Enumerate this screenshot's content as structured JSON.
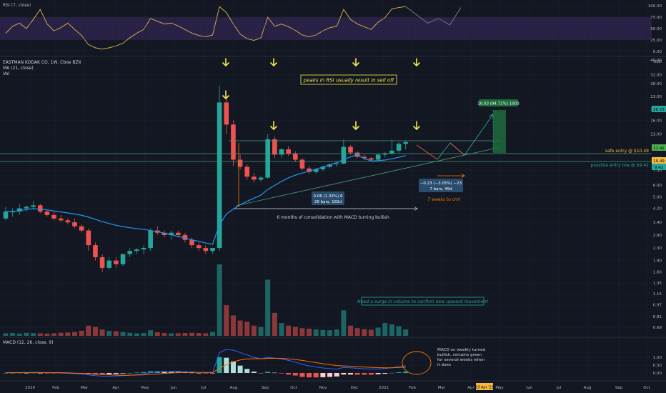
{
  "colors": {
    "bg": "#131722",
    "grid": "#1f2330",
    "axis_text": "#b2b5be",
    "up": "#26a69a",
    "down": "#ef5350",
    "ma": "#2196f3",
    "rsi_line": "#c9a94f",
    "rsi_band": "#2a2146",
    "arrow": "#f5e94a",
    "macd_line": "#2962ff",
    "signal_line": "#ff6d00",
    "annotation": "#f5e94a",
    "ruler": "#2a4d6e",
    "profit": "#1e6b3c",
    "loss": "#c2185b"
  },
  "header": {
    "rsi_label": "RSI (7, close)",
    "symbol_label": "EASTMAN KODAK CO, 1W, Cboe BZX",
    "ma_label": "MA (21, close)",
    "vol_label": "Vol",
    "macd_label": "MACD (12, 26, close, 9)",
    "currency": "USD"
  },
  "annotations": {
    "rsi_note": "peaks in RSI usually result in sell off",
    "consolidation": "6 months of consolidation with MACD turning bullish",
    "volume_note": "Need a surge in volume to confirm new upward movement",
    "macd_note_lines": [
      "MACD on weekly turned",
      "bullish, remains green",
      "for several weeks when",
      "it does"
    ],
    "weeks_to_cml": "7 weeks to cml",
    "ruler_1_line1": "0.06 (1.33%) 6",
    "ruler_1_line2": "26 bars, 182d",
    "ruler_2_line1": "−0.23 (−3.05%) −23",
    "ruler_2_line2": "7 bars, 49d",
    "target_label": "10.03 (94.72%) 1003",
    "safe_entry": "safe entry @ $10.49",
    "possible_entry": "possible entry low @ $9.42"
  },
  "price_tags": {
    "upper": "20.73",
    "mid1": "11.42",
    "mid2": "10.49",
    "low": "9.42"
  },
  "axes": {
    "rsi_ticks": [
      "100.00",
      "75.00",
      "50.00",
      "25.00",
      "0.00"
    ],
    "price_ticks": [
      "40.00",
      "32.00",
      "28.00",
      "23.00",
      "19.00",
      "16.00",
      "13.00",
      "9.00",
      "7.50",
      "6.00",
      "5.00",
      "4.20",
      "3.40",
      "2.80",
      "2.30",
      "1.90",
      "1.60",
      "1.35",
      "1.15",
      "0.97",
      "0.81",
      "0.69"
    ],
    "macd_ticks": [
      "1.00",
      "0.50",
      "0.00"
    ],
    "x_ticks": [
      "2020",
      "Feb",
      "Mar",
      "Apr",
      "May",
      "Jun",
      "Jul",
      "Aug",
      "Sep",
      "Oct",
      "Nov",
      "Dec",
      "2021",
      "Feb",
      "Mar",
      "Apr",
      "May",
      "Jun",
      "Jul",
      "Aug",
      "Sep",
      "Oct"
    ],
    "date_tag": "19 Apr '21"
  },
  "chart_data": {
    "type": "candlestick",
    "title": "EASTMAN KODAK CO, 1W, Cboe BZX",
    "price_scale": "log",
    "ylim": [
      0.69,
      40
    ],
    "weeks": 59,
    "ohlc": [
      [
        3.6,
        4.3,
        3.5,
        4.0
      ],
      [
        4.0,
        4.2,
        3.7,
        4.0
      ],
      [
        4.0,
        4.5,
        3.8,
        4.2
      ],
      [
        4.2,
        4.4,
        4.0,
        4.3
      ],
      [
        4.3,
        4.7,
        4.1,
        4.4
      ],
      [
        4.4,
        4.5,
        3.9,
        4.0
      ],
      [
        4.0,
        4.1,
        3.7,
        3.8
      ],
      [
        3.8,
        4.0,
        3.5,
        3.6
      ],
      [
        3.6,
        3.8,
        3.4,
        3.5
      ],
      [
        3.5,
        3.6,
        3.3,
        3.4
      ],
      [
        3.4,
        3.6,
        3.1,
        3.2
      ],
      [
        3.2,
        3.3,
        2.9,
        3.0
      ],
      [
        3.0,
        3.1,
        2.2,
        2.4
      ],
      [
        2.4,
        2.5,
        1.9,
        2.0
      ],
      [
        2.0,
        2.1,
        1.6,
        1.7
      ],
      [
        1.7,
        2.0,
        1.65,
        1.9
      ],
      [
        1.9,
        2.0,
        1.7,
        1.8
      ],
      [
        1.8,
        2.1,
        1.75,
        2.1
      ],
      [
        2.1,
        2.3,
        2.0,
        2.2
      ],
      [
        2.2,
        2.3,
        2.1,
        2.25
      ],
      [
        2.25,
        2.4,
        2.1,
        2.3
      ],
      [
        2.3,
        3.1,
        2.2,
        3.0
      ],
      [
        3.0,
        3.2,
        2.8,
        2.9
      ],
      [
        2.9,
        3.0,
        2.7,
        2.8
      ],
      [
        2.8,
        3.0,
        2.6,
        2.9
      ],
      [
        2.9,
        3.0,
        2.7,
        2.8
      ],
      [
        2.8,
        2.9,
        2.5,
        2.6
      ],
      [
        2.6,
        2.7,
        2.3,
        2.4
      ],
      [
        2.4,
        2.5,
        2.2,
        2.3
      ],
      [
        2.3,
        2.4,
        2.1,
        2.2
      ],
      [
        2.2,
        2.3,
        2.1,
        2.3
      ],
      [
        2.3,
        27,
        2.2,
        21
      ],
      [
        21,
        22,
        13,
        15
      ],
      [
        15,
        16,
        8.0,
        8.8
      ],
      [
        8.8,
        9.5,
        7.6,
        7.9
      ],
      [
        7.9,
        8.2,
        6.5,
        6.8
      ],
      [
        6.8,
        7.2,
        6.2,
        6.5
      ],
      [
        6.5,
        6.9,
        6.3,
        6.7
      ],
      [
        6.7,
        13,
        6.6,
        12.0
      ],
      [
        12.0,
        12.5,
        9.0,
        9.5
      ],
      [
        9.5,
        10.5,
        9.0,
        10.3
      ],
      [
        10.3,
        10.8,
        9.3,
        9.6
      ],
      [
        9.6,
        10.0,
        8.5,
        8.8
      ],
      [
        8.8,
        9.0,
        7.5,
        7.7
      ],
      [
        7.7,
        8.0,
        7.1,
        7.3
      ],
      [
        7.3,
        7.7,
        7.1,
        7.6
      ],
      [
        7.6,
        8.0,
        7.4,
        7.9
      ],
      [
        7.9,
        8.3,
        7.7,
        8.2
      ],
      [
        8.2,
        8.4,
        7.9,
        8.3
      ],
      [
        8.3,
        12,
        8.2,
        10.7
      ],
      [
        10.7,
        11,
        9.5,
        9.8
      ],
      [
        9.8,
        10.0,
        9.0,
        9.2
      ],
      [
        9.2,
        9.5,
        8.8,
        9.0
      ],
      [
        9.0,
        9.2,
        8.6,
        8.8
      ],
      [
        8.8,
        9.6,
        8.7,
        9.5
      ],
      [
        9.5,
        9.9,
        9.1,
        9.7
      ],
      [
        9.7,
        12,
        9.5,
        10.1
      ],
      [
        10.1,
        11.5,
        9.8,
        11.2
      ],
      [
        11.2,
        11.8,
        10.3,
        11.5
      ]
    ],
    "volume": [
      1,
      1.1,
      0.9,
      1.2,
      1.1,
      1,
      0.9,
      1,
      1.2,
      1.3,
      1.5,
      2,
      4,
      3.5,
      2.5,
      2,
      1.8,
      1.5,
      1.2,
      1,
      1.1,
      2.2,
      1.4,
      1.1,
      1,
      1,
      1.1,
      1.2,
      1.1,
      1,
      1.5,
      28,
      12,
      8,
      6,
      5.5,
      4,
      3.5,
      22,
      9,
      5,
      4,
      3.5,
      3,
      2.8,
      2.5,
      2.3,
      2.2,
      2.5,
      10,
      4,
      3,
      2.6,
      2.4,
      3.2,
      5,
      4.5,
      3.8,
      2.5
    ],
    "rsi": [
      40,
      55,
      62,
      50,
      70,
      92,
      60,
      45,
      52,
      62,
      48,
      35,
      15,
      8,
      5,
      8,
      12,
      18,
      30,
      40,
      48,
      72,
      66,
      60,
      62,
      56,
      48,
      40,
      35,
      32,
      36,
      98,
      85,
      60,
      38,
      28,
      24,
      30,
      75,
      55,
      60,
      54,
      46,
      36,
      32,
      36,
      45,
      52,
      55,
      92,
      70,
      60,
      54,
      48,
      64,
      74,
      93,
      96,
      98
    ],
    "rsi_projection": [
      98,
      80,
      62,
      72,
      58,
      96
    ],
    "macd": [
      0.02,
      0.02,
      0.03,
      0.03,
      0.04,
      0.03,
      0.02,
      0.01,
      0,
      -0.02,
      -0.04,
      -0.07,
      -0.12,
      -0.17,
      -0.2,
      -0.2,
      -0.19,
      -0.17,
      -0.14,
      -0.1,
      -0.06,
      0.02,
      0.06,
      0.08,
      0.09,
      0.1,
      0.08,
      0.06,
      0.04,
      0.02,
      0.01,
      1.3,
      1.5,
      1.45,
      1.3,
      1.15,
      1.0,
      0.9,
      1.0,
      0.95,
      0.9,
      0.8,
      0.7,
      0.55,
      0.45,
      0.38,
      0.32,
      0.28,
      0.25,
      0.35,
      0.33,
      0.3,
      0.27,
      0.25,
      0.26,
      0.28,
      0.34,
      0.4,
      0.46
    ],
    "signal": [
      0.02,
      0.02,
      0.02,
      0.03,
      0.03,
      0.03,
      0.03,
      0.02,
      0.02,
      0.01,
      -0.01,
      -0.02,
      -0.04,
      -0.07,
      -0.1,
      -0.12,
      -0.13,
      -0.14,
      -0.14,
      -0.13,
      -0.12,
      -0.09,
      -0.06,
      -0.03,
      0,
      0.02,
      0.04,
      0.04,
      0.04,
      0.04,
      0.03,
      0.29,
      0.53,
      0.71,
      0.83,
      0.89,
      0.91,
      0.91,
      0.93,
      0.93,
      0.93,
      0.9,
      0.86,
      0.8,
      0.73,
      0.66,
      0.59,
      0.53,
      0.47,
      0.45,
      0.43,
      0.41,
      0.38,
      0.36,
      0.34,
      0.33,
      0.33,
      0.35,
      0.37
    ]
  }
}
